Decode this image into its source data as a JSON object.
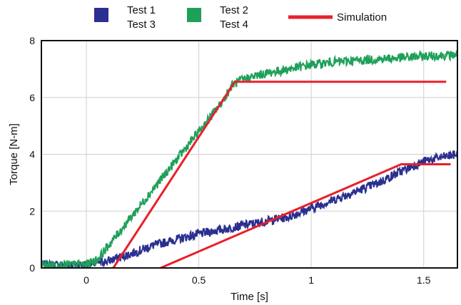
{
  "chart_data": {
    "type": "line",
    "xlabel": "Time [s]",
    "ylabel": "Torque [N-m]",
    "xlim": [
      -0.2,
      1.65
    ],
    "ylim": [
      0,
      8
    ],
    "xticks": [
      0,
      0.5,
      1,
      1.5
    ],
    "xtick_labels": [
      "0",
      "0.5",
      "1",
      "1.5"
    ],
    "yticks": [
      0,
      2,
      4,
      6,
      8
    ],
    "ytick_labels": [
      "0",
      "2",
      "4",
      "6",
      "8"
    ],
    "grid": true,
    "legend": {
      "placement": "top",
      "entries": [
        {
          "label_lines": [
            "Test 1",
            "Test 3"
          ],
          "color": "#2b2f8f",
          "marker": "square"
        },
        {
          "label_lines": [
            "Test 2",
            "Test 4"
          ],
          "color": "#1fa05a",
          "marker": "square"
        },
        {
          "label_lines": [
            "Simulation"
          ],
          "color": "#e8202a",
          "marker": "line"
        }
      ]
    },
    "series": [
      {
        "label": "Test 1 / Test 3",
        "color": "#2b2f8f",
        "noisy": true,
        "x": [
          -0.2,
          0.0,
          0.1,
          0.2,
          0.3,
          0.5,
          0.7,
          0.9,
          1.1,
          1.3,
          1.4,
          1.5,
          1.55,
          1.65
        ],
        "y": [
          0.1,
          0.12,
          0.25,
          0.5,
          0.8,
          1.2,
          1.5,
          1.8,
          2.4,
          3.0,
          3.4,
          3.75,
          3.85,
          4.0
        ]
      },
      {
        "label": "Test 2 / Test 4",
        "color": "#1fa05a",
        "noisy": true,
        "x": [
          -0.2,
          0.0,
          0.05,
          0.1,
          0.2,
          0.3,
          0.4,
          0.5,
          0.6,
          0.65,
          0.7,
          0.8,
          0.9,
          1.0,
          1.1,
          1.2,
          1.3,
          1.4,
          1.5,
          1.65
        ],
        "y": [
          0.1,
          0.12,
          0.3,
          0.8,
          1.8,
          2.8,
          3.8,
          4.8,
          5.8,
          6.45,
          6.65,
          6.85,
          7.0,
          7.15,
          7.25,
          7.3,
          7.35,
          7.4,
          7.45,
          7.5
        ]
      },
      {
        "label": "Simulation",
        "color": "#e8202a",
        "noisy": false,
        "segments": [
          {
            "x": [
              0.12,
              0.66,
              1.6
            ],
            "y": [
              0.0,
              6.55,
              6.55
            ]
          },
          {
            "x": [
              0.33,
              1.4,
              1.62
            ],
            "y": [
              0.0,
              3.65,
              3.65
            ]
          }
        ]
      }
    ]
  }
}
